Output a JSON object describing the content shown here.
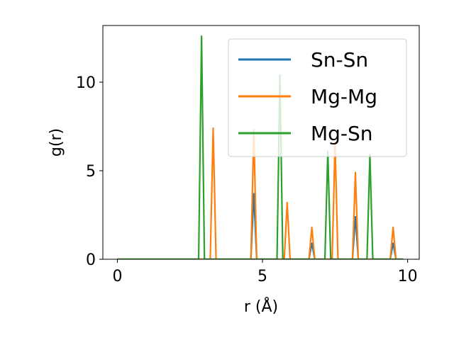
{
  "chart_data": {
    "type": "line",
    "xlabel": "r (Å)",
    "ylabel": "g(r)",
    "xlim": [
      -0.5,
      10.4
    ],
    "ylim": [
      0,
      13.2
    ],
    "xticks": [
      0,
      5,
      10
    ],
    "yticks": [
      0,
      5,
      10
    ],
    "grid": false,
    "legend_position": "top-right",
    "series": [
      {
        "name": "Sn-Sn",
        "color": "#1f77b4",
        "x": [
          0,
          4.6,
          4.7,
          4.8,
          6.6,
          6.7,
          6.8,
          8.1,
          8.2,
          8.3,
          9.4,
          9.5,
          9.6,
          9.85
        ],
        "y": [
          0,
          0,
          3.7,
          0,
          0,
          0.9,
          0,
          0,
          2.4,
          0,
          0,
          0.9,
          0,
          0
        ]
      },
      {
        "name": "Mg-Mg",
        "color": "#ff7f0e",
        "x": [
          0,
          3.2,
          3.3,
          3.4,
          4.6,
          4.7,
          4.8,
          5.75,
          5.85,
          5.95,
          6.6,
          6.7,
          6.8,
          7.4,
          7.5,
          7.6,
          8.1,
          8.2,
          8.3,
          9.4,
          9.5,
          9.6,
          9.85
        ],
        "y": [
          0,
          0,
          7.4,
          0,
          0,
          7.3,
          0,
          0,
          3.2,
          0,
          0,
          1.8,
          0,
          0,
          6.6,
          0,
          0,
          4.9,
          0,
          0,
          1.8,
          0,
          0
        ]
      },
      {
        "name": "Mg-Sn",
        "color": "#2ca02c",
        "x": [
          0,
          2.8,
          2.9,
          3.0,
          5.5,
          5.6,
          5.7,
          7.15,
          7.25,
          7.35,
          8.6,
          8.7,
          8.8,
          9.85
        ],
        "y": [
          0,
          0,
          12.6,
          0,
          0,
          10.4,
          0,
          0,
          6.1,
          0,
          0,
          5.9,
          0,
          0
        ]
      }
    ]
  }
}
